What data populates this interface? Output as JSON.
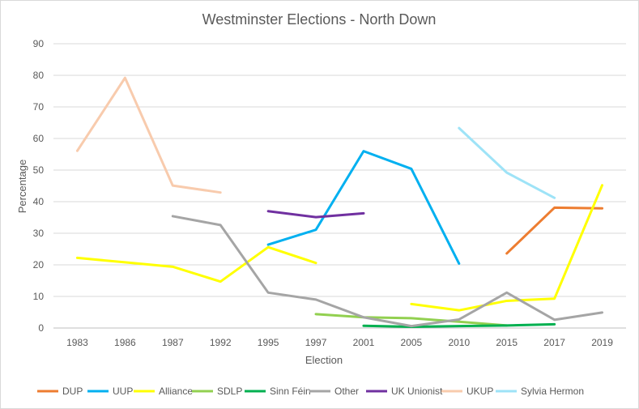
{
  "chart_data": {
    "type": "line",
    "title": "Westminster Elections - North Down",
    "xlabel": "Election",
    "ylabel": "Percentage",
    "ylim": [
      0,
      90
    ],
    "yticks": [
      0,
      10,
      20,
      30,
      40,
      50,
      60,
      70,
      80,
      90
    ],
    "grid": true,
    "legend": "bottom",
    "categories": [
      "1983",
      "1986",
      "1987",
      "1992",
      "1995",
      "1997",
      "2001",
      "2005",
      "2010",
      "2015",
      "2017",
      "2019"
    ],
    "series": [
      {
        "name": "DUP",
        "color": "#ed7d31",
        "values": [
          null,
          null,
          null,
          null,
          null,
          null,
          null,
          null,
          null,
          23.6,
          38.1,
          37.9
        ]
      },
      {
        "name": "UUP",
        "color": "#00b0f0",
        "values": [
          null,
          null,
          null,
          null,
          26.4,
          31.1,
          56.0,
          50.4,
          20.4,
          null,
          null,
          null
        ]
      },
      {
        "name": "Alliance",
        "color": "#ffff00",
        "values": [
          22.2,
          20.8,
          19.4,
          14.7,
          25.6,
          20.6,
          null,
          7.6,
          5.6,
          8.6,
          9.3,
          45.2
        ]
      },
      {
        "name": "SDLP",
        "color": "#92d050",
        "values": [
          null,
          null,
          null,
          null,
          null,
          4.4,
          3.4,
          3.1,
          2.0,
          0.8,
          null,
          null
        ]
      },
      {
        "name": "Sinn Féin",
        "color": "#00b050",
        "values": [
          null,
          null,
          null,
          null,
          null,
          null,
          0.7,
          0.4,
          0.6,
          0.8,
          1.2,
          null
        ]
      },
      {
        "name": "Other",
        "color": "#a5a5a5",
        "values": [
          null,
          null,
          35.4,
          32.6,
          11.2,
          9.0,
          3.4,
          0.6,
          2.7,
          11.2,
          2.6,
          4.9
        ]
      },
      {
        "name": "UK Unionist",
        "color": "#7030a0",
        "values": [
          null,
          null,
          null,
          null,
          37.0,
          35.1,
          36.3,
          null,
          null,
          null,
          null,
          null
        ]
      },
      {
        "name": "UKUP",
        "color": "#f8cbad",
        "values": [
          56.1,
          79.2,
          45.1,
          42.9,
          null,
          null,
          null,
          null,
          null,
          null,
          null,
          null
        ]
      },
      {
        "name": "Sylvia Hermon",
        "color": "#9ee3f7",
        "values": [
          null,
          null,
          null,
          null,
          null,
          null,
          null,
          null,
          63.3,
          49.2,
          41.2,
          null
        ]
      }
    ]
  }
}
